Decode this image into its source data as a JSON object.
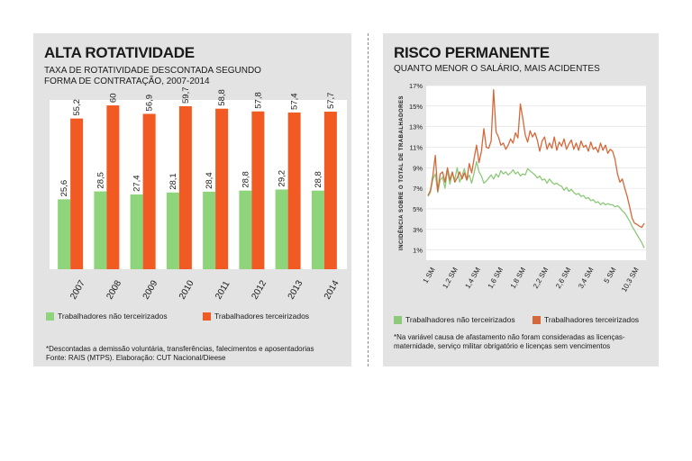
{
  "colors": {
    "green": "#8dd47a",
    "orange": "#f15a22",
    "green_line": "#8cc97a",
    "orange_line": "#d4683a"
  },
  "left": {
    "title": "ALTA ROTATIVIDADE",
    "subtitle_1": "TAXA DE ROTATIVIDADE DESCONTADA SEGUNDO",
    "subtitle_2": "FORMA DE CONTRATAÇÃO, 2007-2014",
    "legend_green": "Trabalhadores não terceirizados",
    "legend_orange": "Trabalhadores terceirizados",
    "note_1": "*Descontadas a demissão voluntária, transferências, falecimentos e aposentadorias",
    "note_2": "Fonte: RAIS (MTPS). Elaboração: CUT Nacional/Dieese"
  },
  "right": {
    "title": "RISCO PERMANENTE",
    "subtitle": "QUANTO MENOR O SALÁRIO, MAIS ACIDENTES",
    "legend_green": "Trabalhadores não terceirizados",
    "legend_orange": "Trabalhadores terceirizados",
    "note_1": "*Na variável causa de afastamento não foram consideradas as licenças-",
    "note_2": "maternidade, serviço militar obrigatório e licenças sem vencimentos"
  },
  "chart_data": [
    {
      "type": "bar",
      "categories": [
        "2007",
        "2008",
        "2009",
        "2010",
        "2011",
        "2012",
        "2013",
        "2014"
      ],
      "series": [
        {
          "name": "Trabalhadores não terceirizados",
          "values": [
            25.6,
            28.5,
            27.4,
            28.1,
            28.4,
            28.8,
            29.2,
            28.8
          ],
          "labels": [
            "25,6",
            "28,5",
            "27,4",
            "28,1",
            "28,4",
            "28,8",
            "29,2",
            "28,8"
          ]
        },
        {
          "name": "Trabalhadores terceirizados",
          "values": [
            55.2,
            60,
            56.9,
            59.7,
            58.8,
            57.8,
            57.4,
            57.7
          ],
          "labels": [
            "55,2",
            "60",
            "56,9",
            "59,7",
            "58,8",
            "57,8",
            "57,4",
            "57,7"
          ]
        }
      ],
      "ylim": [
        0,
        62
      ]
    },
    {
      "type": "line",
      "ylabel": "INCIDÊNCIA SOBRE O TOTAL DE TRABALHADORES",
      "y_ticks": [
        "1%",
        "3%",
        "5%",
        "7%",
        "9%",
        "11%",
        "13%",
        "15%",
        "17%"
      ],
      "x_ticks": [
        "1 SM",
        "1,2 SM",
        "1,4 SM",
        "1,6 SM",
        "1,8 SM",
        "2,2 SM",
        "2,6 SM",
        "3,4 SM",
        "5 SM",
        "10,3 SM"
      ],
      "ylim": [
        0,
        17
      ],
      "series": [
        {
          "name": "Trabalhadores não terceirizados",
          "values": [
            6.2,
            6.6,
            7.9,
            8.4,
            6.6,
            7.8,
            8.1,
            7.0,
            8.8,
            7.4,
            8.5,
            7.8,
            9.0,
            7.6,
            8.2,
            8.9,
            7.8,
            8.3,
            7.5,
            8.5,
            9.6,
            8.6,
            8.2,
            7.5,
            7.7,
            8.0,
            8.3,
            7.9,
            8.4,
            8.1,
            8.7,
            8.4,
            8.6,
            8.3,
            8.5,
            8.8,
            8.4,
            8.6,
            8.2,
            8.4,
            8.3,
            8.9,
            8.7,
            8.5,
            8.3,
            8.0,
            8.2,
            7.8,
            7.9,
            7.5,
            7.9,
            7.6,
            7.4,
            7.5,
            7.3,
            7.2,
            6.8,
            7.1,
            6.7,
            6.9,
            6.6,
            6.4,
            6.5,
            6.2,
            6.3,
            6.0,
            6.1,
            5.8,
            5.9,
            5.6,
            5.7,
            5.4,
            5.6,
            5.4,
            5.5,
            5.4,
            5.4,
            5.2,
            5.3,
            5.1,
            4.8,
            4.6,
            4.2,
            3.8,
            3.3,
            2.9,
            2.5,
            2.1,
            1.7,
            1.2
          ]
        },
        {
          "name": "Trabalhadores terceirizados",
          "values": [
            6.3,
            6.8,
            8.2,
            10.2,
            6.7,
            8.4,
            8.6,
            7.6,
            9.0,
            7.8,
            8.6,
            7.6,
            8.0,
            8.6,
            7.9,
            8.5,
            7.8,
            9.4,
            8.5,
            9.9,
            11.2,
            9.5,
            10.6,
            12.8,
            11.0,
            10.9,
            11.6,
            16.6,
            12.5,
            12.0,
            11.2,
            11.4,
            10.8,
            11.2,
            11.8,
            11.4,
            12.4,
            11.9,
            15.2,
            13.8,
            12.2,
            11.5,
            12.6,
            12.0,
            12.4,
            11.7,
            10.6,
            11.6,
            12.0,
            10.8,
            11.4,
            10.9,
            12.0,
            10.7,
            11.5,
            11.1,
            11.8,
            10.8,
            11.3,
            11.7,
            10.8,
            11.4,
            10.7,
            11.6,
            11.0,
            11.2,
            10.6,
            11.5,
            10.8,
            11.0,
            10.5,
            11.4,
            10.7,
            11.2,
            10.4,
            10.8,
            10.6,
            9.8,
            8.4,
            7.6,
            7.9,
            7.0,
            6.2,
            5.2,
            4.1,
            3.6,
            3.5,
            3.3,
            3.2,
            3.6
          ]
        }
      ]
    }
  ]
}
